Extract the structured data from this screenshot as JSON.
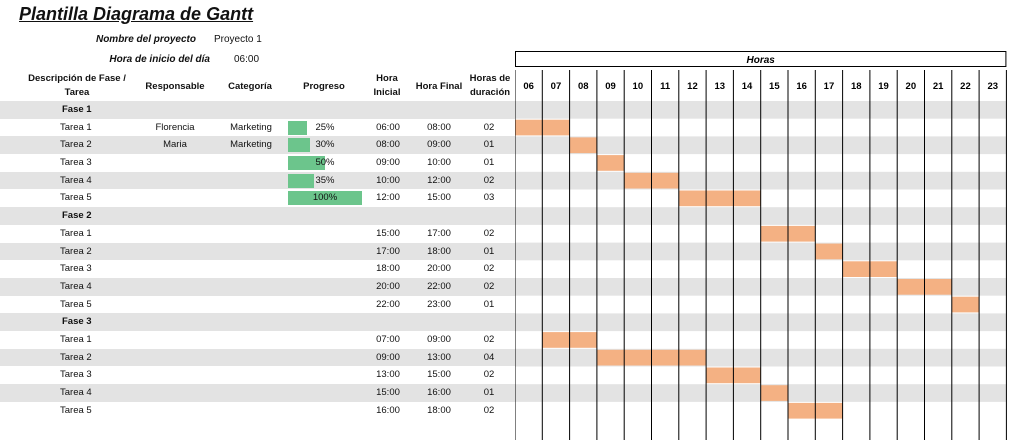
{
  "title": "Plantilla Diagrama de Gantt",
  "meta": {
    "project_label": "Nombre del proyecto",
    "project_value": "Proyecto 1",
    "start_label": "Hora de inicio del día",
    "start_value": "06:00"
  },
  "headers": {
    "desc": "Descripción de Fase / Tarea",
    "resp": "Responsable",
    "cat": "Categoría",
    "prog": "Progreso",
    "start": "Hora Inicial",
    "end": "Hora Final",
    "dur": "Horas de duración",
    "hours": "Horas"
  },
  "hour_labels": [
    "06",
    "07",
    "08",
    "09",
    "10",
    "11",
    "12",
    "13",
    "14",
    "15",
    "16",
    "17",
    "18",
    "19",
    "20",
    "21",
    "22",
    "23"
  ],
  "colors": {
    "bar": "#f4b183",
    "progress": "#6cc58c",
    "stripe": "#e3e3e3"
  },
  "rows": [
    {
      "kind": "phase",
      "name": "Fase 1"
    },
    {
      "kind": "task",
      "name": "Tarea 1",
      "resp": "Florencia",
      "cat": "Marketing",
      "progress": 0.25,
      "progress_text": "25%",
      "start": "06:00",
      "end": "08:00",
      "dur": "02"
    },
    {
      "kind": "task",
      "name": "Tarea 2",
      "resp": "Maria",
      "cat": "Marketing",
      "progress": 0.3,
      "progress_text": "30%",
      "start": "08:00",
      "end": "09:00",
      "dur": "01"
    },
    {
      "kind": "task",
      "name": "Tarea 3",
      "resp": "",
      "cat": "",
      "progress": 0.5,
      "progress_text": "50%",
      "start": "09:00",
      "end": "10:00",
      "dur": "01"
    },
    {
      "kind": "task",
      "name": "Tarea 4",
      "resp": "",
      "cat": "",
      "progress": 0.35,
      "progress_text": "35%",
      "start": "10:00",
      "end": "12:00",
      "dur": "02"
    },
    {
      "kind": "task",
      "name": "Tarea 5",
      "resp": "",
      "cat": "",
      "progress": 1.0,
      "progress_text": "100%",
      "start": "12:00",
      "end": "15:00",
      "dur": "03"
    },
    {
      "kind": "phase",
      "name": "Fase 2"
    },
    {
      "kind": "task",
      "name": "Tarea 1",
      "resp": "",
      "cat": "",
      "start": "15:00",
      "end": "17:00",
      "dur": "02"
    },
    {
      "kind": "task",
      "name": "Tarea 2",
      "resp": "",
      "cat": "",
      "start": "17:00",
      "end": "18:00",
      "dur": "01"
    },
    {
      "kind": "task",
      "name": "Tarea 3",
      "resp": "",
      "cat": "",
      "start": "18:00",
      "end": "20:00",
      "dur": "02"
    },
    {
      "kind": "task",
      "name": "Tarea 4",
      "resp": "",
      "cat": "",
      "start": "20:00",
      "end": "22:00",
      "dur": "02"
    },
    {
      "kind": "task",
      "name": "Tarea 5",
      "resp": "",
      "cat": "",
      "start": "22:00",
      "end": "23:00",
      "dur": "01"
    },
    {
      "kind": "phase",
      "name": "Fase 3"
    },
    {
      "kind": "task",
      "name": "Tarea 1",
      "resp": "",
      "cat": "",
      "start": "07:00",
      "end": "09:00",
      "dur": "02"
    },
    {
      "kind": "task",
      "name": "Tarea 2",
      "resp": "",
      "cat": "",
      "start": "09:00",
      "end": "13:00",
      "dur": "04"
    },
    {
      "kind": "task",
      "name": "Tarea 3",
      "resp": "",
      "cat": "",
      "start": "13:00",
      "end": "15:00",
      "dur": "02"
    },
    {
      "kind": "task",
      "name": "Tarea 4",
      "resp": "",
      "cat": "",
      "start": "15:00",
      "end": "16:00",
      "dur": "01"
    },
    {
      "kind": "task",
      "name": "Tarea 5",
      "resp": "",
      "cat": "",
      "start": "16:00",
      "end": "18:00",
      "dur": "02"
    }
  ]
}
